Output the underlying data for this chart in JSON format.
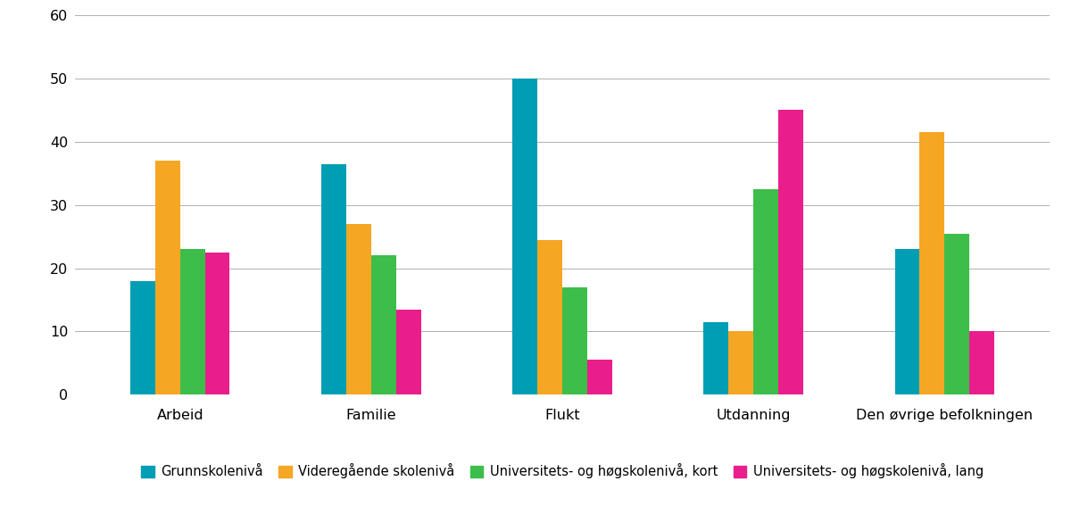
{
  "categories": [
    "Arbeid",
    "Familie",
    "Flukt",
    "Utdanning",
    "Den øvrige befolkningen"
  ],
  "series": [
    {
      "label": "Grunnskolenivå",
      "color": "#009EB4",
      "values": [
        18.0,
        36.5,
        50.0,
        11.5,
        23.0
      ]
    },
    {
      "label": "Videregående skolenivå",
      "color": "#F5A623",
      "values": [
        37.0,
        27.0,
        24.5,
        10.0,
        41.5
      ]
    },
    {
      "label": "Universitets- og høgskolenivå, kort",
      "color": "#3DBD4A",
      "values": [
        23.0,
        22.0,
        17.0,
        32.5,
        25.5
      ]
    },
    {
      "label": "Universitets- og høgskolenivå, lang",
      "color": "#E91E8C",
      "values": [
        22.5,
        13.5,
        5.5,
        45.0,
        10.0
      ]
    }
  ],
  "ylim": [
    0,
    60
  ],
  "yticks": [
    0,
    10,
    20,
    30,
    40,
    50,
    60
  ],
  "bar_width": 0.13,
  "background_color": "#ffffff",
  "grid_color": "#b0b0b0",
  "legend_fontsize": 10.5,
  "tick_fontsize": 11.5,
  "figsize": [
    12.0,
    5.67
  ]
}
